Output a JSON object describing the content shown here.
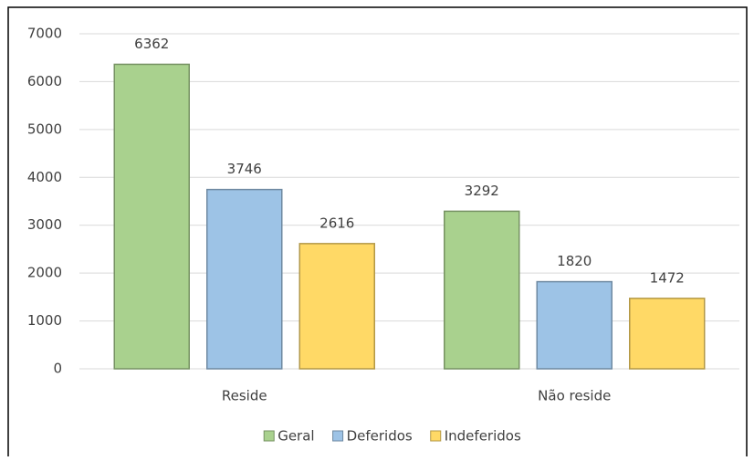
{
  "chart_data": {
    "type": "bar",
    "categories": [
      "Reside",
      "Não reside"
    ],
    "series": [
      {
        "name": "Geral",
        "color": "#a9d18e",
        "values": [
          6362,
          3292
        ]
      },
      {
        "name": "Deferidos",
        "color": "#9dc3e6",
        "values": [
          3746,
          1820
        ]
      },
      {
        "name": "Indeferidos",
        "color": "#ffd966",
        "values": [
          2616,
          1472
        ]
      }
    ],
    "ylim": [
      0,
      7000
    ],
    "yticks": [
      0,
      1000,
      2000,
      3000,
      4000,
      5000,
      6000,
      7000
    ],
    "grid": true,
    "legend": "bottom"
  }
}
